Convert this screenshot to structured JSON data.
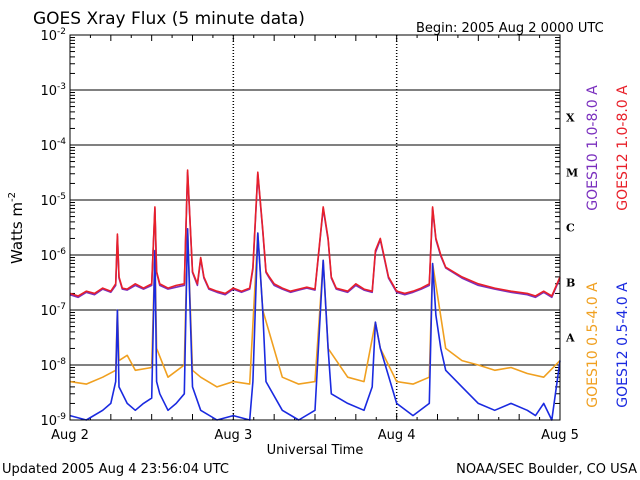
{
  "chart_data": {
    "type": "line",
    "title": "GOES Xray Flux (5 minute data)",
    "begin_label": "Begin:  2005 Aug 2 0000 UTC",
    "ylabel_main": "Watts m",
    "ylabel_exp": "-2",
    "xlabel": "Universal Time",
    "y_scale": "log",
    "ylim": [
      1e-09,
      0.01
    ],
    "xlim": [
      0,
      3
    ],
    "y_ticks": [
      {
        "base": "10",
        "exp": "-2",
        "value": 0.01
      },
      {
        "base": "10",
        "exp": "-3",
        "value": 0.001
      },
      {
        "base": "10",
        "exp": "-4",
        "value": 0.0001
      },
      {
        "base": "10",
        "exp": "-5",
        "value": 1e-05
      },
      {
        "base": "10",
        "exp": "-6",
        "value": 1e-06
      },
      {
        "base": "10",
        "exp": "-7",
        "value": 1e-07
      },
      {
        "base": "10",
        "exp": "-8",
        "value": 1e-08
      },
      {
        "base": "10",
        "exp": "-9",
        "value": 1e-09
      }
    ],
    "x_ticks": [
      {
        "label": "Aug 2",
        "value": 0
      },
      {
        "label": "Aug 3",
        "value": 1
      },
      {
        "label": "Aug 4",
        "value": 2
      },
      {
        "label": "Aug 5",
        "value": 3
      }
    ],
    "flare_classes": [
      {
        "label": "X",
        "value": 0.000316
      },
      {
        "label": "M",
        "value": 3.16e-05
      },
      {
        "label": "C",
        "value": 3.16e-06
      },
      {
        "label": "B",
        "value": 3.16e-07
      },
      {
        "label": "A",
        "value": 3.16e-08
      }
    ],
    "grid": true,
    "legend": [
      {
        "label": "GOES10 1.0-8.0 A",
        "color": "#7a2fbe",
        "position": "right"
      },
      {
        "label": "GOES12 1.0-8.0 A",
        "color": "#e8202a",
        "position": "right"
      },
      {
        "label": "GOES10 0.5-4.0 A",
        "color": "#f0a020",
        "position": "right"
      },
      {
        "label": "GOES12 0.5-4.0 A",
        "color": "#1a2ae0",
        "position": "right"
      }
    ],
    "series": [
      {
        "name": "GOES12 1.0-8.0 A",
        "color": "#e8202a",
        "x": [
          0,
          0.05,
          0.1,
          0.15,
          0.2,
          0.25,
          0.28,
          0.29,
          0.3,
          0.32,
          0.35,
          0.4,
          0.45,
          0.5,
          0.52,
          0.53,
          0.55,
          0.6,
          0.65,
          0.7,
          0.72,
          0.75,
          0.78,
          0.8,
          0.82,
          0.85,
          0.9,
          0.95,
          1.0,
          1.05,
          1.1,
          1.12,
          1.15,
          1.18,
          1.2,
          1.22,
          1.25,
          1.3,
          1.35,
          1.4,
          1.45,
          1.5,
          1.55,
          1.58,
          1.6,
          1.63,
          1.7,
          1.75,
          1.8,
          1.85,
          1.87,
          1.9,
          1.95,
          2.0,
          2.05,
          2.1,
          2.15,
          2.2,
          2.22,
          2.24,
          2.27,
          2.3,
          2.4,
          2.5,
          2.6,
          2.7,
          2.8,
          2.85,
          2.9,
          2.95,
          3.0
        ],
        "y": [
          2e-07,
          1.8e-07,
          2.2e-07,
          2e-07,
          2.5e-07,
          2.2e-07,
          3e-07,
          2.4e-06,
          4e-07,
          2.5e-07,
          2.4e-07,
          3e-07,
          2.5e-07,
          3e-07,
          7.5e-06,
          5e-07,
          3e-07,
          2.5e-07,
          2.8e-07,
          3e-07,
          3.5e-05,
          5e-07,
          3e-07,
          9e-07,
          4e-07,
          2.5e-07,
          2.2e-07,
          2e-07,
          2.5e-07,
          2.2e-07,
          2.5e-07,
          6e-07,
          3.2e-05,
          3e-06,
          5e-07,
          4e-07,
          3e-07,
          2.5e-07,
          2.2e-07,
          2.4e-07,
          2.6e-07,
          2.4e-07,
          7.5e-06,
          2e-06,
          4e-07,
          2.5e-07,
          2.2e-07,
          3e-07,
          2.4e-07,
          2.2e-07,
          1.2e-06,
          2e-06,
          4e-07,
          2.2e-07,
          2e-07,
          2.2e-07,
          2.5e-07,
          3e-07,
          7.5e-06,
          2e-06,
          1e-06,
          6e-07,
          4e-07,
          3e-07,
          2.5e-07,
          2.2e-07,
          2e-07,
          1.8e-07,
          2.2e-07,
          1.8e-07,
          4e-07
        ]
      },
      {
        "name": "GOES10 1.0-8.0 A",
        "color": "#7a2fbe",
        "x": [
          0,
          0.05,
          0.1,
          0.15,
          0.2,
          0.25,
          0.28,
          0.29,
          0.3,
          0.32,
          0.35,
          0.4,
          0.45,
          0.5,
          0.52,
          0.53,
          0.55,
          0.6,
          0.65,
          0.7,
          0.72,
          0.75,
          0.78,
          0.8,
          0.82,
          0.85,
          0.9,
          0.95,
          1.0,
          1.05,
          1.1,
          1.12,
          1.15,
          1.18,
          1.2,
          1.22,
          1.25,
          1.3,
          1.35,
          1.4,
          1.45,
          1.5,
          1.55,
          1.58,
          1.6,
          1.63,
          1.7,
          1.75,
          1.8,
          1.85,
          1.87,
          1.9,
          1.95,
          2.0,
          2.05,
          2.1,
          2.15,
          2.2,
          2.22,
          2.24,
          2.27,
          2.3,
          2.4,
          2.5,
          2.6,
          2.7,
          2.8,
          2.85,
          2.9,
          2.95,
          3.0
        ],
        "y": [
          1.9e-07,
          1.7e-07,
          2.1e-07,
          1.9e-07,
          2.4e-07,
          2.1e-07,
          2.8e-07,
          2.2e-06,
          3.8e-07,
          2.4e-07,
          2.3e-07,
          2.8e-07,
          2.4e-07,
          2.8e-07,
          7e-06,
          4.8e-07,
          2.8e-07,
          2.4e-07,
          2.6e-07,
          2.8e-07,
          3.2e-05,
          4.8e-07,
          2.8e-07,
          8.5e-07,
          3.8e-07,
          2.4e-07,
          2.1e-07,
          1.9e-07,
          2.4e-07,
          2.1e-07,
          2.4e-07,
          5.5e-07,
          3e-05,
          2.8e-06,
          4.8e-07,
          3.8e-07,
          2.8e-07,
          2.4e-07,
          2.1e-07,
          2.3e-07,
          2.5e-07,
          2.3e-07,
          7e-06,
          1.9e-06,
          3.8e-07,
          2.4e-07,
          2.1e-07,
          2.8e-07,
          2.3e-07,
          2.1e-07,
          1.1e-06,
          1.9e-06,
          3.8e-07,
          2.1e-07,
          1.9e-07,
          2.1e-07,
          2.4e-07,
          2.8e-07,
          7e-06,
          1.9e-06,
          9.5e-07,
          5.8e-07,
          3.8e-07,
          2.8e-07,
          2.4e-07,
          2.1e-07,
          1.9e-07,
          1.7e-07,
          2.1e-07,
          1.7e-07,
          3.8e-07
        ]
      },
      {
        "name": "GOES10 0.5-4.0 A",
        "color": "#f0a020",
        "x": [
          0,
          0.1,
          0.2,
          0.28,
          0.29,
          0.3,
          0.35,
          0.4,
          0.5,
          0.52,
          0.53,
          0.6,
          0.7,
          0.72,
          0.75,
          0.8,
          0.9,
          1.0,
          1.1,
          1.15,
          1.18,
          1.3,
          1.4,
          1.5,
          1.55,
          1.58,
          1.7,
          1.8,
          1.87,
          1.9,
          2.0,
          2.1,
          2.2,
          2.22,
          2.3,
          2.4,
          2.5,
          2.6,
          2.7,
          2.8,
          2.9,
          3.0
        ],
        "y": [
          5e-09,
          4.5e-09,
          6e-09,
          8e-09,
          1e-07,
          1.2e-08,
          1.5e-08,
          8e-09,
          9e-09,
          1.2e-06,
          2e-08,
          6e-09,
          1e-08,
          3e-06,
          8e-09,
          6e-09,
          4e-09,
          5e-09,
          4.5e-09,
          2.5e-06,
          1e-07,
          6e-09,
          4.5e-09,
          5e-09,
          8e-07,
          2e-08,
          6e-09,
          5e-09,
          6e-08,
          2e-08,
          5e-09,
          4.5e-09,
          6e-09,
          7e-07,
          2e-08,
          1.2e-08,
          1e-08,
          8e-09,
          9e-09,
          7e-09,
          6e-09,
          1.2e-08
        ]
      },
      {
        "name": "GOES12 0.5-4.0 A",
        "color": "#1a2ae0",
        "x": [
          0,
          0.1,
          0.2,
          0.25,
          0.28,
          0.29,
          0.3,
          0.35,
          0.4,
          0.45,
          0.5,
          0.52,
          0.53,
          0.55,
          0.6,
          0.65,
          0.7,
          0.72,
          0.75,
          0.8,
          0.9,
          1.0,
          1.1,
          1.12,
          1.15,
          1.18,
          1.2,
          1.3,
          1.4,
          1.5,
          1.55,
          1.58,
          1.6,
          1.7,
          1.8,
          1.85,
          1.87,
          1.9,
          2.0,
          2.1,
          2.2,
          2.22,
          2.24,
          2.27,
          2.3,
          2.4,
          2.5,
          2.6,
          2.7,
          2.8,
          2.85,
          2.9,
          2.95,
          3.0
        ],
        "y": [
          1.2e-09,
          1e-09,
          1.5e-09,
          2e-09,
          5e-09,
          1e-07,
          4e-09,
          2e-09,
          1.5e-09,
          2e-09,
          2.5e-09,
          1.2e-06,
          5e-09,
          3e-09,
          1.5e-09,
          2e-09,
          3e-09,
          3e-06,
          4e-09,
          1.5e-09,
          1e-09,
          1.2e-09,
          1e-09,
          5e-09,
          2.5e-06,
          1e-07,
          5e-09,
          1.5e-09,
          1e-09,
          1.5e-09,
          8e-07,
          2e-08,
          3e-09,
          2e-09,
          1.5e-09,
          4e-09,
          6e-08,
          2e-08,
          2e-09,
          1.2e-09,
          2e-09,
          7e-07,
          8e-08,
          2e-08,
          8e-09,
          4e-09,
          2e-09,
          1.5e-09,
          2e-09,
          1.5e-09,
          1.2e-09,
          2e-09,
          1e-09,
          1.2e-08
        ]
      }
    ]
  },
  "footer": {
    "updated": "Updated 2005 Aug  4 23:56:04 UTC",
    "credit": "NOAA/SEC Boulder, CO USA"
  }
}
